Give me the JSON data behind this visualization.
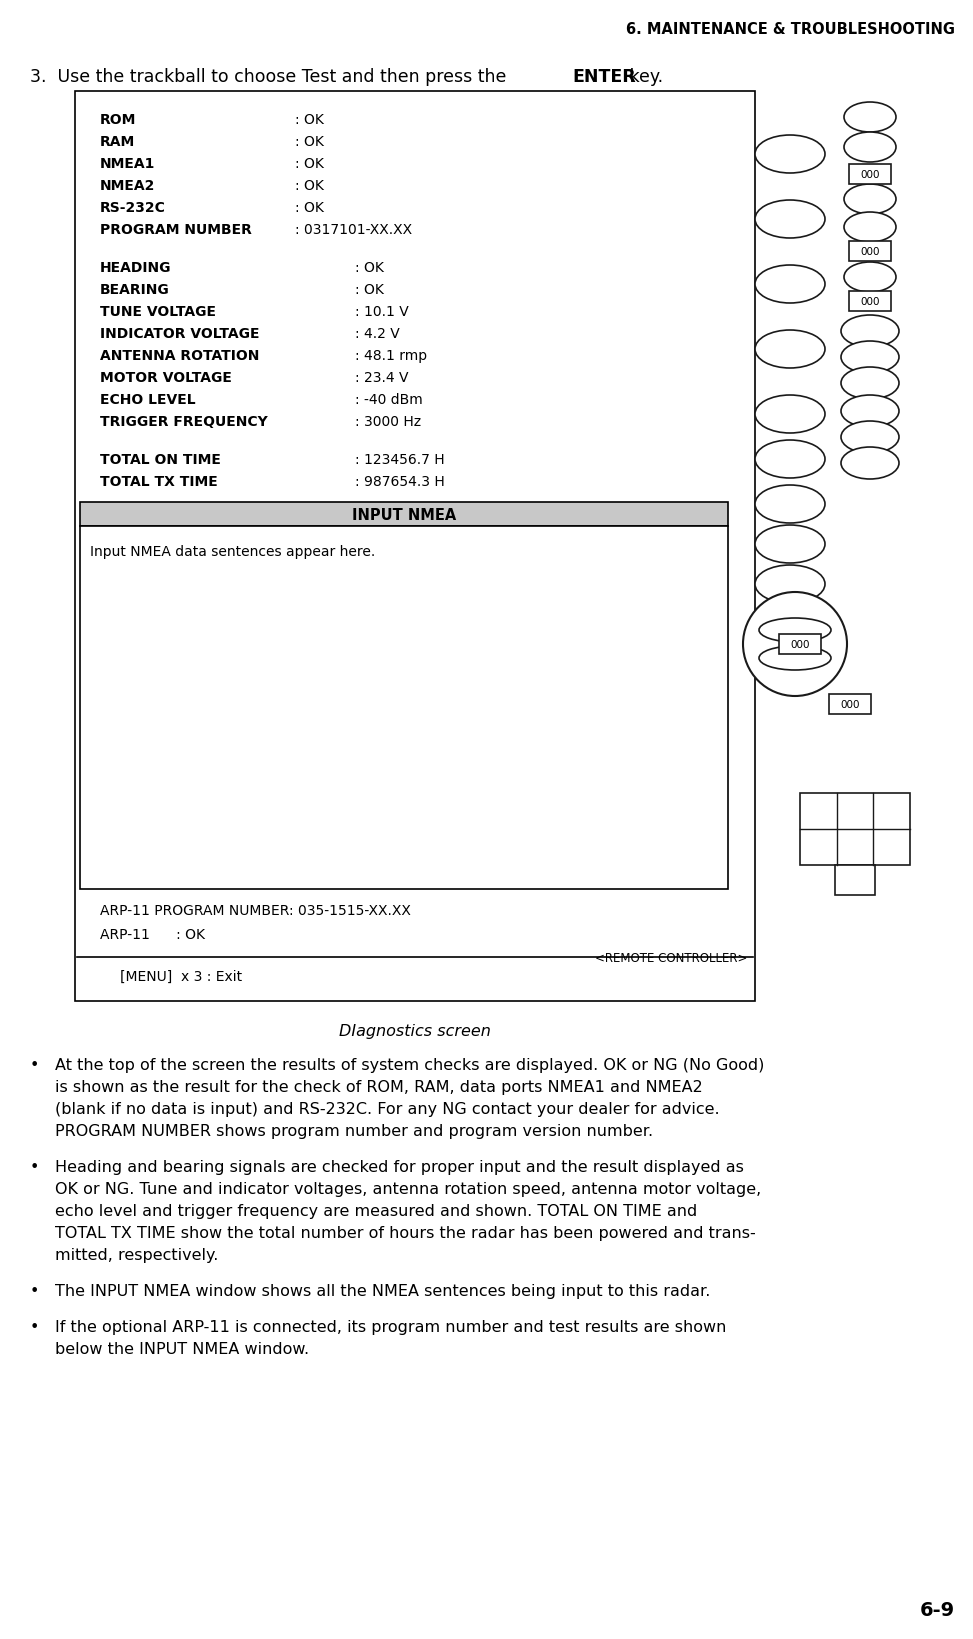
{
  "header": "6. MAINTENANCE & TROUBLESHOOTING",
  "step_text_normal": "3.  Use the trackball to choose Test and then press the ",
  "step_text_bold": "ENTER",
  "step_text_end": " key.",
  "screen_caption": "DIagnostics screen",
  "footer_page": "6-9",
  "screen_lines_top": [
    [
      "ROM",
      ": OK"
    ],
    [
      "RAM",
      ": OK"
    ],
    [
      "NMEA1",
      ": OK"
    ],
    [
      "NMEA2",
      ": OK"
    ],
    [
      "RS-232C",
      ": OK"
    ],
    [
      "PROGRAM NUMBER",
      ": 0317101-XX.XX"
    ]
  ],
  "screen_lines_mid": [
    [
      "HEADING",
      ": OK"
    ],
    [
      "BEARING",
      ": OK"
    ],
    [
      "TUNE VOLTAGE",
      ": 10.1 V"
    ],
    [
      "INDICATOR VOLTAGE",
      ": 4.2 V"
    ],
    [
      "ANTENNA ROTATION",
      ": 48.1 rmp"
    ],
    [
      "MOTOR VOLTAGE",
      ": 23.4 V"
    ],
    [
      "ECHO LEVEL",
      ": -40 dBm"
    ],
    [
      "TRIGGER FREQUENCY",
      ": 3000 Hz"
    ]
  ],
  "screen_lines_bot": [
    [
      "TOTAL ON TIME",
      ": 123456.7 H"
    ],
    [
      "TOTAL TX TIME",
      ": 987654.3 H"
    ]
  ],
  "input_nmea_title": "INPUT NMEA",
  "input_nmea_body": "Input NMEA data sentences appear here.",
  "arp_line1": "ARP-11 PROGRAM NUMBER: 035-1515-XX.XX",
  "arp_line2": "ARP-11      : OK",
  "remote_label": "<REMOTE CONTROLLER>",
  "menu_line": "[MENU]  x 3 : Exit",
  "bullet1": "At the top of the screen the results of system checks are displayed. OK or NG (No Good)\nis shown as the result for the check of ROM, RAM, data ports NMEA1 and NMEA2\n(blank if no data is input) and RS-232C. For any NG contact your dealer for advice.\nPROGRAM NUMBER shows program number and program version number.",
  "bullet2": "Heading and bearing signals are checked for proper input and the result displayed as\nOK or NG. Tune and indicator voltages, antenna rotation speed, antenna motor voltage,\necho level and trigger frequency are measured and shown. TOTAL ON TIME and\nTOTAL TX TIME show the total number of hours the radar has been powered and trans-\nmitted, respectively.",
  "bullet3": "The INPUT NMEA window shows all the NMEA sentences being input to this radar.",
  "bullet4": "If the optional ARP-11 is connected, its program number and test results are shown\nbelow the INPUT NMEA window.",
  "bg_color": "#ffffff",
  "text_color": "#000000",
  "screen_bg": "#ffffff",
  "screen_border": "#000000",
  "nmea_header_bg": "#c8c8c8"
}
